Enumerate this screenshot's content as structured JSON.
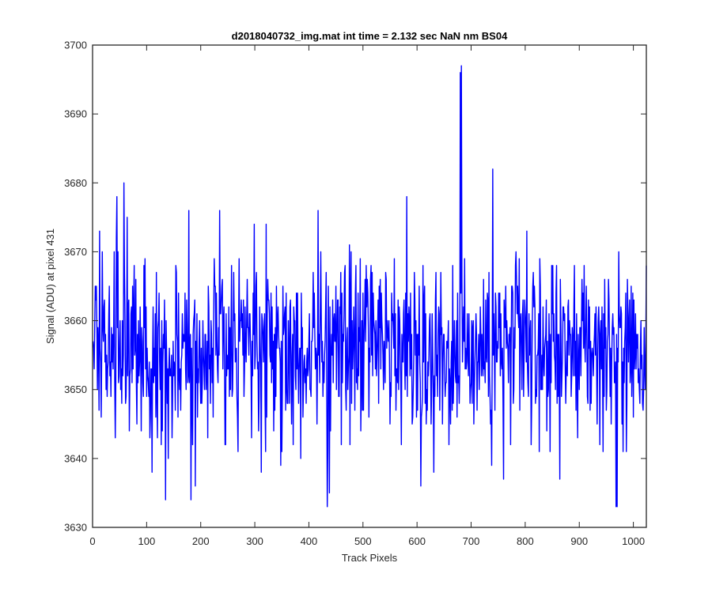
{
  "chart_data": {
    "type": "line",
    "title": "d2018040732_img.mat int time = 2.132 sec  NaN nm BS04",
    "xlabel": "Track Pixels",
    "ylabel": "Signal (ADU) at pixel 431",
    "xlim": [
      0,
      1024
    ],
    "ylim": [
      3630,
      3700
    ],
    "xticks": [
      0,
      100,
      200,
      300,
      400,
      500,
      600,
      700,
      800,
      900,
      1000
    ],
    "yticks": [
      3630,
      3640,
      3650,
      3660,
      3670,
      3680,
      3690,
      3700
    ],
    "grid": false,
    "legend": "none",
    "series": [
      {
        "color": "#0000ff",
        "x_start": 1,
        "x_step": 1,
        "noise_profile": {
          "mean": 3656,
          "noise_sd": 6.5,
          "clamp": [
            3633,
            3697
          ]
        },
        "notable_points": [
          {
            "x": 13,
            "y": 3673
          },
          {
            "x": 45,
            "y": 3678
          },
          {
            "x": 58,
            "y": 3680
          },
          {
            "x": 135,
            "y": 3634
          },
          {
            "x": 178,
            "y": 3676
          },
          {
            "x": 182,
            "y": 3634
          },
          {
            "x": 190,
            "y": 3636
          },
          {
            "x": 417,
            "y": 3676
          },
          {
            "x": 434,
            "y": 3633
          },
          {
            "x": 438,
            "y": 3635
          },
          {
            "x": 581,
            "y": 3678
          },
          {
            "x": 659,
            "y": 3642
          },
          {
            "x": 680,
            "y": 3696
          },
          {
            "x": 682,
            "y": 3697
          },
          {
            "x": 740,
            "y": 3682
          },
          {
            "x": 760,
            "y": 3637
          },
          {
            "x": 968,
            "y": 3633
          },
          {
            "x": 970,
            "y": 3633
          },
          {
            "x": 1024,
            "y": 3668
          }
        ]
      }
    ]
  }
}
